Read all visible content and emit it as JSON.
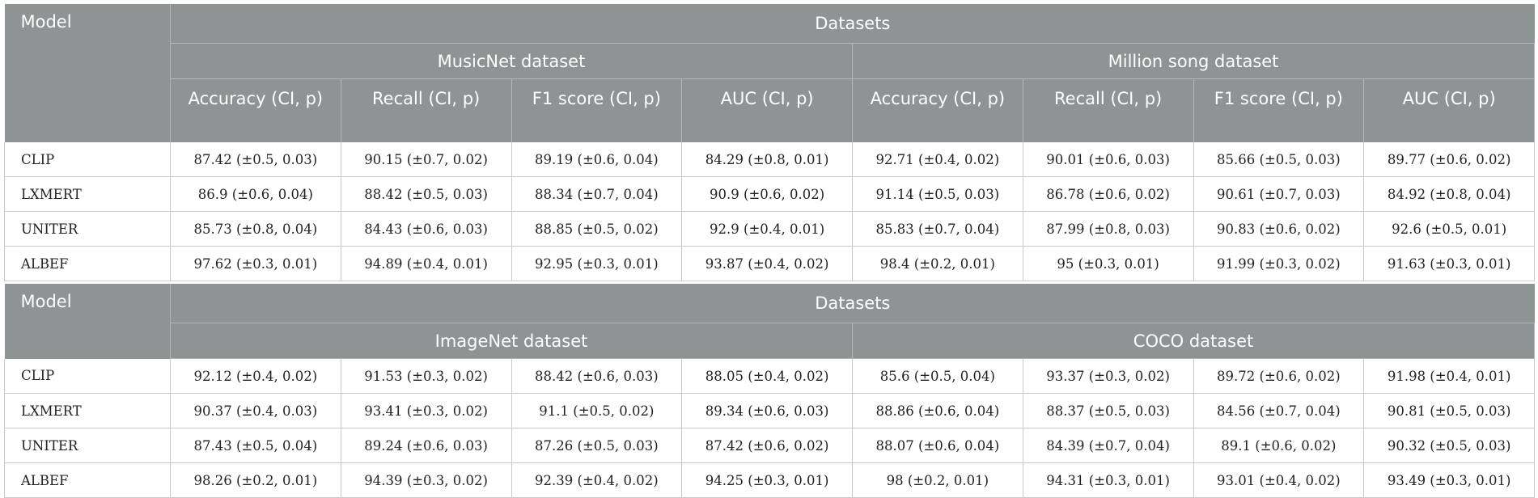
{
  "table1": {
    "model_header": "Model",
    "datasets_header": "Datasets",
    "groups": [
      "MusicNet dataset",
      "Million song dataset"
    ],
    "metrics": [
      "Accuracy (CI, p)",
      "Recall (CI, p)",
      "F1 score (CI, p)",
      "AUC (CI, p)",
      "Accuracy (CI, p)",
      "Recall (CI, p)",
      "F1 score (CI, p)",
      "AUC (CI, p)"
    ],
    "rows": [
      {
        "model": "CLIP",
        "values": [
          "87.42 (±0.5, 0.03)",
          "90.15 (±0.7, 0.02)",
          "89.19 (±0.6, 0.04)",
          "84.29 (±0.8, 0.01)",
          "92.71 (±0.4, 0.02)",
          "90.01 (±0.6, 0.03)",
          "85.66 (±0.5, 0.03)",
          "89.77 (±0.6, 0.02)"
        ]
      },
      {
        "model": "LXMERT",
        "values": [
          "86.9 (±0.6, 0.04)",
          "88.42 (±0.5, 0.03)",
          "88.34 (±0.7, 0.04)",
          "90.9 (±0.6, 0.02)",
          "91.14 (±0.5, 0.03)",
          "86.78 (±0.6, 0.02)",
          "90.61 (±0.7, 0.03)",
          "84.92 (±0.8, 0.04)"
        ]
      },
      {
        "model": "UNITER",
        "values": [
          "85.73 (±0.8, 0.04)",
          "84.43 (±0.6, 0.03)",
          "88.85 (±0.5, 0.02)",
          "92.9 (±0.4, 0.01)",
          "85.83 (±0.7, 0.04)",
          "87.99 (±0.8, 0.03)",
          "90.83 (±0.6, 0.02)",
          "92.6 (±0.5, 0.01)"
        ]
      },
      {
        "model": "ALBEF",
        "values": [
          "97.62 (±0.3, 0.01)",
          "94.89 (±0.4, 0.01)",
          "92.95 (±0.3, 0.01)",
          "93.87 (±0.4, 0.02)",
          "98.4 (±0.2, 0.01)",
          "95 (±0.3, 0.01)",
          "91.99 (±0.3, 0.02)",
          "91.63 (±0.3, 0.01)"
        ]
      }
    ]
  },
  "table2": {
    "model_header": "Model",
    "datasets_header": "Datasets",
    "groups": [
      "ImageNet dataset",
      "COCO dataset"
    ],
    "rows": [
      {
        "model": "CLIP",
        "values": [
          "92.12 (±0.4, 0.02)",
          "91.53 (±0.3, 0.02)",
          "88.42 (±0.6, 0.03)",
          "88.05 (±0.4, 0.02)",
          "85.6 (±0.5, 0.04)",
          "93.37 (±0.3, 0.02)",
          "89.72 (±0.6, 0.02)",
          "91.98 (±0.4, 0.01)"
        ]
      },
      {
        "model": "LXMERT",
        "values": [
          "90.37 (±0.4, 0.03)",
          "93.41 (±0.3, 0.02)",
          "91.1 (±0.5, 0.02)",
          "89.34 (±0.6, 0.03)",
          "88.86 (±0.6, 0.04)",
          "88.37 (±0.5, 0.03)",
          "84.56 (±0.7, 0.04)",
          "90.81 (±0.5, 0.03)"
        ]
      },
      {
        "model": "UNITER",
        "values": [
          "87.43 (±0.5, 0.04)",
          "89.24 (±0.6, 0.03)",
          "87.26 (±0.5, 0.03)",
          "87.42 (±0.6, 0.02)",
          "88.07 (±0.6, 0.04)",
          "84.39 (±0.7, 0.04)",
          "89.1 (±0.6, 0.02)",
          "90.32 (±0.5, 0.03)"
        ]
      },
      {
        "model": "ALBEF",
        "values": [
          "98.26 (±0.2, 0.01)",
          "94.39 (±0.3, 0.02)",
          "92.39 (±0.4, 0.02)",
          "94.25 (±0.3, 0.01)",
          "98 (±0.2, 0.01)",
          "94.31 (±0.3, 0.01)",
          "93.01 (±0.4, 0.02)",
          "93.49 (±0.3, 0.01)"
        ]
      }
    ]
  }
}
